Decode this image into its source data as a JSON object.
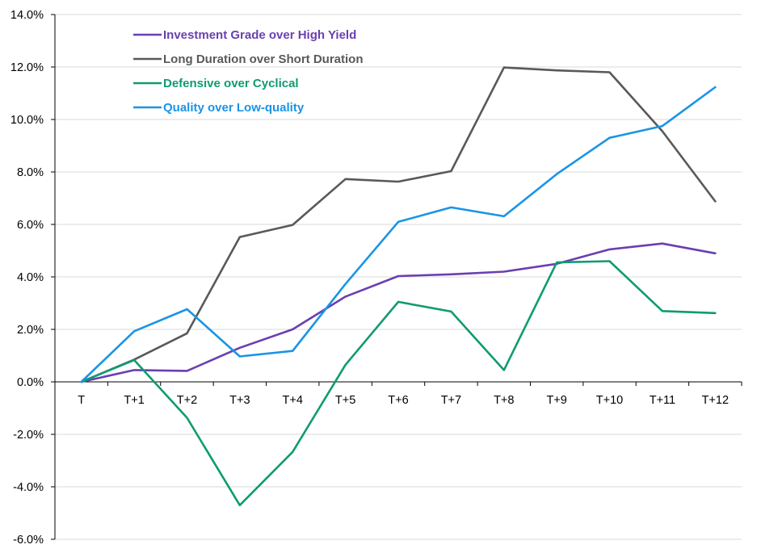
{
  "chart_data": {
    "type": "line",
    "categories": [
      "T",
      "T+1",
      "T+2",
      "T+3",
      "T+4",
      "T+5",
      "T+6",
      "T+7",
      "T+8",
      "T+9",
      "T+10",
      "T+11",
      "T+12"
    ],
    "ylim": [
      -6,
      14
    ],
    "yticks": [
      "14.0%",
      "12.0%",
      "10.0%",
      "8.0%",
      "6.0%",
      "4.0%",
      "2.0%",
      "0.0%",
      "-2.0%",
      "-4.0%",
      "-6.0%"
    ],
    "grid": true,
    "legend_position": "top-left",
    "series": [
      {
        "name": "Investment Grade over High Yield",
        "color": "#6a3fb0",
        "values": [
          0.0,
          0.45,
          0.42,
          1.3,
          2.0,
          3.25,
          4.03,
          4.1,
          4.2,
          4.5,
          5.05,
          5.27,
          4.9
        ]
      },
      {
        "name": "Long Duration over Short Duration",
        "color": "#595959",
        "values": [
          0.0,
          0.85,
          1.85,
          5.52,
          5.98,
          7.73,
          7.63,
          8.03,
          11.98,
          11.87,
          11.8,
          9.55,
          6.88
        ]
      },
      {
        "name": "Defensive over Cyclical",
        "color": "#0f9b72",
        "values": [
          0.0,
          0.83,
          -1.37,
          -4.7,
          -2.67,
          0.65,
          3.05,
          2.68,
          0.45,
          4.55,
          4.6,
          2.7,
          2.62
        ]
      },
      {
        "name": "Quality over Low-quality",
        "color": "#1a94e6",
        "values": [
          0.0,
          1.93,
          2.77,
          0.97,
          1.18,
          3.73,
          6.1,
          6.65,
          6.31,
          7.92,
          9.3,
          9.75,
          11.23
        ]
      }
    ]
  }
}
